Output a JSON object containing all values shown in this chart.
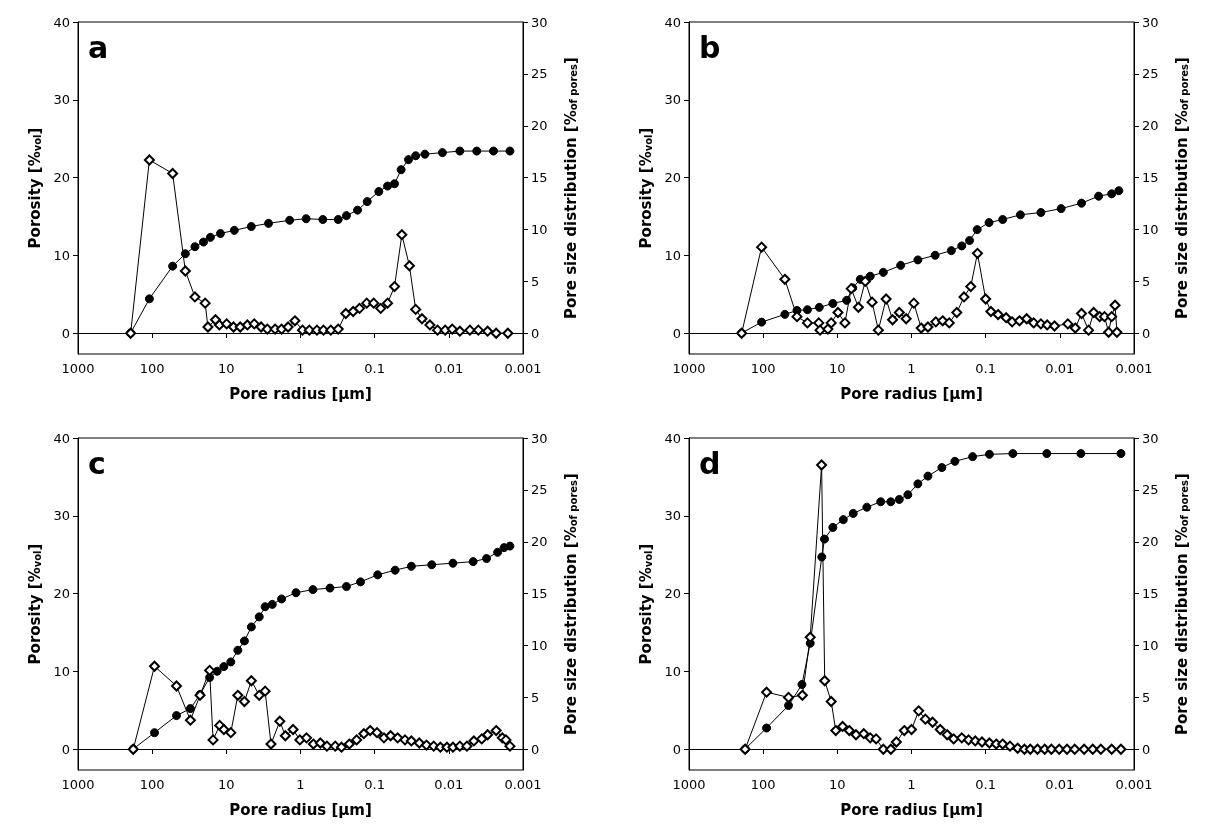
{
  "chart_data": [
    {
      "type": "line",
      "annotations": [
        "a"
      ],
      "xlabel": "Pore radius [µm]",
      "ylabel": "Porosity [%$_{vol}$]",
      "y2label": "Pore size distribution [%$_{of pores}$]",
      "xlim": [
        1000,
        0.001
      ],
      "xticks": [
        1000,
        100,
        10,
        1,
        0.1,
        0.01,
        0.001
      ],
      "log": "x",
      "ylim": [
        -2.7,
        40
      ],
      "yticks": [
        0,
        10,
        20,
        30,
        40
      ],
      "y2lim": [
        -2,
        30
      ],
      "y2ticks": [
        0,
        5,
        10,
        15,
        20,
        25,
        30
      ],
      "series": [
        {
          "color": "#000000",
          "marker": "circle",
          "x": [
            195,
            109,
            53,
            35.7,
            26.5,
            20.3,
            16.4,
            12,
            7.8,
            4.6,
            2.7,
            1.4,
            0.84,
            0.5,
            0.31,
            0.24,
            0.17,
            0.126,
            0.088,
            0.067,
            0.054,
            0.044,
            0.035,
            0.028,
            0.021,
            0.0122,
            0.0071,
            0.0042,
            0.0025,
            0.0015
          ],
          "values": [
            0,
            4.4,
            8.6,
            10.2,
            11.1,
            11.7,
            12.3,
            12.8,
            13.2,
            13.7,
            14.1,
            14.5,
            14.7,
            14.6,
            14.6,
            15.1,
            15.8,
            16.9,
            18.2,
            18.9,
            19.2,
            21.0,
            22.3,
            22.8,
            23.0,
            23.2,
            23.4,
            23.4,
            23.4,
            23.4
          ]
        },
        {
          "color": "#000000",
          "marker": "diamond",
          "axis": "y2",
          "x": [
            195,
            109,
            53,
            35.7,
            26.5,
            19.3,
            17.7,
            14,
            12.4,
            9.9,
            8,
            6.5,
            5.2,
            4.2,
            3.4,
            2.8,
            2.2,
            1.8,
            1.47,
            1.19,
            0.94,
            0.76,
            0.6,
            0.49,
            0.39,
            0.31,
            0.245,
            0.195,
            0.16,
            0.128,
            0.103,
            0.083,
            0.067,
            0.054,
            0.043,
            0.034,
            0.028,
            0.023,
            0.018,
            0.0142,
            0.0112,
            0.009,
            0.0071,
            0.0052,
            0.004,
            0.003,
            0.0023,
            0.0016
          ],
          "values": [
            0,
            16.7,
            15.4,
            6.0,
            3.5,
            2.9,
            0.6,
            1.3,
            0.8,
            0.9,
            0.6,
            0.6,
            0.8,
            0.9,
            0.6,
            0.4,
            0.4,
            0.4,
            0.6,
            1.2,
            0.3,
            0.3,
            0.3,
            0.3,
            0.3,
            0.4,
            1.9,
            2.1,
            2.4,
            2.9,
            2.9,
            2.4,
            2.9,
            4.5,
            9.5,
            6.5,
            2.3,
            1.4,
            0.8,
            0.3,
            0.3,
            0.4,
            0.2,
            0.3,
            0.3,
            0.2,
            0,
            0
          ]
        }
      ]
    },
    {
      "type": "line",
      "annotations": [
        "b"
      ],
      "xlabel": "Pore radius [µm]",
      "ylabel": "Porosity [%$_{vol}$]",
      "y2label": "Pore size distribution [%$_{of pores}$]",
      "xlim": [
        1000,
        0.001
      ],
      "xticks": [
        1000,
        100,
        10,
        1,
        0.1,
        0.01,
        0.001
      ],
      "log": "x",
      "ylim": [
        -2.7,
        40
      ],
      "yticks": [
        0,
        10,
        20,
        30,
        40
      ],
      "y2lim": [
        -2,
        30
      ],
      "y2ticks": [
        0,
        5,
        10,
        15,
        20,
        25,
        30
      ],
      "series": [
        {
          "color": "#000000",
          "marker": "circle",
          "x": [
            195,
            105,
            51,
            35,
            25.3,
            17.5,
            11.5,
            7.5,
            6.2,
            4.9,
            3.6,
            2.4,
            1.4,
            0.82,
            0.48,
            0.29,
            0.21,
            0.165,
            0.13,
            0.09,
            0.059,
            0.034,
            0.018,
            0.0096,
            0.0051,
            0.003,
            0.002,
            0.0016
          ],
          "values": [
            0,
            1.4,
            2.4,
            2.9,
            3.0,
            3.3,
            3.8,
            4.2,
            5.8,
            6.9,
            7.3,
            7.8,
            8.7,
            9.4,
            10.0,
            10.6,
            11.2,
            11.9,
            13.3,
            14.2,
            14.6,
            15.2,
            15.5,
            16.0,
            16.7,
            17.6,
            17.9,
            18.3
          ]
        },
        {
          "color": "#000000",
          "marker": "diamond",
          "axis": "y2",
          "x": [
            195,
            105,
            51,
            35,
            25.3,
            17.8,
            17.1,
            13.4,
            12.1,
            9.8,
            7.9,
            6.5,
            5.2,
            4.2,
            3.4,
            2.8,
            2.2,
            1.8,
            1.46,
            1.18,
            0.93,
            0.74,
            0.6,
            0.47,
            0.38,
            0.31,
            0.245,
            0.196,
            0.159,
            0.129,
            0.1,
            0.085,
            0.068,
            0.053,
            0.044,
            0.035,
            0.028,
            0.0225,
            0.018,
            0.0148,
            0.0118,
            0.0078,
            0.0062,
            0.0051,
            0.0041,
            0.0035,
            0.0029,
            0.0025,
            0.0022,
            0.002,
            0.0018,
            0.0017
          ],
          "values": [
            0,
            8.3,
            5.2,
            1.6,
            1.0,
            1.0,
            0.3,
            0.4,
            1.0,
            2.0,
            1.0,
            4.3,
            2.5,
            5.0,
            3.0,
            0.3,
            3.3,
            1.3,
            2.0,
            1.4,
            2.9,
            0.5,
            0.6,
            1.1,
            1.2,
            1.0,
            2.0,
            3.5,
            4.5,
            7.7,
            3.3,
            2.1,
            1.8,
            1.5,
            1.1,
            1.2,
            1.4,
            1.0,
            0.9,
            0.8,
            0.7,
            0.9,
            0.5,
            1.9,
            0.3,
            2.0,
            1.6,
            1.6,
            0.1,
            1.6,
            2.7,
            0.1
          ]
        }
      ]
    },
    {
      "type": "line",
      "annotations": [
        "c"
      ],
      "xlabel": "Pore radius [µm]",
      "ylabel": "Porosity [%$_{vol}$]",
      "y2label": "Pore size distribution [%$_{of pores}$]",
      "xlim": [
        1000,
        0.001
      ],
      "xticks": [
        1000,
        100,
        10,
        1,
        0.1,
        0.01,
        0.001
      ],
      "log": "x",
      "ylim": [
        -2.7,
        40
      ],
      "yticks": [
        0,
        10,
        20,
        30,
        40
      ],
      "y2lim": [
        -2,
        30
      ],
      "y2ticks": [
        0,
        5,
        10,
        15,
        20,
        25,
        30
      ],
      "series": [
        {
          "color": "#000000",
          "marker": "circle",
          "x": [
            180,
            93,
            47,
            30.5,
            22.6,
            16.8,
            13.3,
            10.8,
            8.7,
            7,
            5.7,
            4.6,
            3.6,
            3,
            2.4,
            1.8,
            1.15,
            0.68,
            0.4,
            0.24,
            0.155,
            0.091,
            0.053,
            0.032,
            0.017,
            0.0088,
            0.0047,
            0.0031,
            0.0022,
            0.0018,
            0.0015
          ],
          "values": [
            0,
            2.1,
            4.3,
            5.2,
            7.0,
            9.2,
            10.0,
            10.6,
            11.2,
            12.7,
            13.9,
            15.7,
            17.0,
            18.3,
            18.6,
            19.3,
            20.1,
            20.5,
            20.7,
            20.9,
            21.5,
            22.4,
            23.0,
            23.5,
            23.7,
            23.9,
            24.1,
            24.5,
            25.3,
            25.9,
            26.1
          ]
        },
        {
          "color": "#000000",
          "marker": "diamond",
          "axis": "y2",
          "x": [
            180,
            93,
            47,
            30.5,
            22.6,
            16.8,
            15.1,
            12.3,
            10.8,
            8.7,
            7,
            5.7,
            4.6,
            3.6,
            3,
            2.5,
            1.9,
            1.6,
            1.26,
            1.02,
            0.83,
            0.67,
            0.54,
            0.44,
            0.34,
            0.28,
            0.22,
            0.175,
            0.14,
            0.115,
            0.093,
            0.075,
            0.061,
            0.049,
            0.039,
            0.032,
            0.025,
            0.02,
            0.016,
            0.013,
            0.0106,
            0.0088,
            0.0071,
            0.0057,
            0.0046,
            0.0036,
            0.003,
            0.0023,
            0.0019,
            0.0017,
            0.0015
          ],
          "values": [
            0,
            8.0,
            6.1,
            2.8,
            5.2,
            7.6,
            0.9,
            2.3,
            1.9,
            1.6,
            5.2,
            4.6,
            6.6,
            5.2,
            5.6,
            0.5,
            2.7,
            1.3,
            1.9,
            0.9,
            1.1,
            0.5,
            0.6,
            0.3,
            0.3,
            0.2,
            0.5,
            0.9,
            1.5,
            1.8,
            1.6,
            1.1,
            1.3,
            1.1,
            0.9,
            0.8,
            0.6,
            0.4,
            0.3,
            0.2,
            0.2,
            0.2,
            0.3,
            0.3,
            0.8,
            1.0,
            1.4,
            1.8,
            1.1,
            0.9,
            0.3
          ]
        }
      ]
    },
    {
      "type": "line",
      "annotations": [
        "d"
      ],
      "xlabel": "Pore radius [µm]",
      "ylabel": "Porosity [%$_{vol}$]",
      "y2label": "Pore size distribution [%$_{of pores}$]",
      "xlim": [
        1000,
        0.001
      ],
      "xticks": [
        1000,
        100,
        10,
        1,
        0.1,
        0.01,
        0.001
      ],
      "log": "x",
      "ylim": [
        -2.7,
        40
      ],
      "yticks": [
        0,
        10,
        20,
        30,
        40
      ],
      "y2lim": [
        -2,
        30
      ],
      "y2ticks": [
        0,
        5,
        10,
        15,
        20,
        25,
        30
      ],
      "series": [
        {
          "color": "#000000",
          "marker": "circle",
          "x": [
            175,
            90,
            45.5,
            30,
            23.2,
            16.2,
            14.9,
            11.5,
            8.3,
            6.1,
            4,
            2.6,
            1.9,
            1.46,
            1.12,
            0.82,
            0.6,
            0.39,
            0.26,
            0.15,
            0.089,
            0.043,
            0.015,
            0.0052,
            0.0015
          ],
          "values": [
            0,
            2.7,
            5.6,
            8.3,
            13.6,
            24.7,
            27.0,
            28.5,
            29.5,
            30.3,
            31.1,
            31.8,
            31.8,
            32.1,
            32.7,
            34.1,
            35.1,
            36.2,
            37.0,
            37.6,
            37.9,
            38.0,
            38.0,
            38.0,
            38.0
          ]
        },
        {
          "color": "#000000",
          "marker": "diamond",
          "axis": "y2",
          "x": [
            175,
            90,
            45.5,
            29.6,
            23.2,
            16.3,
            14.8,
            12.1,
            10.5,
            8.5,
            6.9,
            5.6,
            4.4,
            3.6,
            3,
            2.4,
            1.9,
            1.6,
            1.25,
            1,
            0.8,
            0.65,
            0.52,
            0.41,
            0.33,
            0.27,
            0.21,
            0.17,
            0.138,
            0.112,
            0.089,
            0.072,
            0.059,
            0.047,
            0.037,
            0.03,
            0.025,
            0.02,
            0.016,
            0.013,
            0.0102,
            0.008,
            0.0063,
            0.0047,
            0.0036,
            0.0028,
            0.002,
            0.0015
          ],
          "values": [
            0,
            5.5,
            5.0,
            5.2,
            10.8,
            27.4,
            6.6,
            4.6,
            1.8,
            2.2,
            1.8,
            1.4,
            1.5,
            1.1,
            1.0,
            0,
            0,
            0.7,
            1.8,
            1.9,
            3.7,
            2.9,
            2.6,
            1.9,
            1.4,
            1.0,
            1.1,
            0.9,
            0.8,
            0.7,
            0.6,
            0.5,
            0.5,
            0.3,
            0.1,
            0,
            0,
            0,
            0,
            0,
            0,
            0,
            0,
            0,
            0,
            0,
            0,
            0
          ]
        }
      ]
    }
  ]
}
